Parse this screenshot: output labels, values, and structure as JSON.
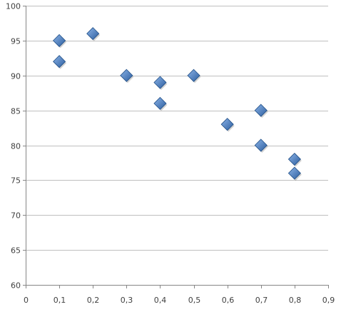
{
  "chart_data": {
    "type": "scatter",
    "title": "",
    "xlabel": "",
    "ylabel": "",
    "xlim": [
      0,
      0.9
    ],
    "ylim": [
      60,
      100
    ],
    "x_ticks": [
      0,
      0.1,
      0.2,
      0.3,
      0.4,
      0.5,
      0.6,
      0.7,
      0.8,
      0.9
    ],
    "x_tick_labels": [
      "0",
      "0,1",
      "0,2",
      "0,3",
      "0,4",
      "0,5",
      "0,6",
      "0,7",
      "0,8",
      "0,9"
    ],
    "y_ticks": [
      60,
      65,
      70,
      75,
      80,
      85,
      90,
      95,
      100
    ],
    "y_tick_labels": [
      "60",
      "65",
      "70",
      "75",
      "80",
      "85",
      "90",
      "95",
      "100"
    ],
    "grid": "horizontal",
    "legend": "none",
    "marker": "diamond",
    "colors": {
      "marker_fill_light": "#8cb4e8",
      "marker_fill_dark": "#2c5d9e",
      "marker_stroke": "#1f4e86"
    },
    "series": [
      {
        "points": [
          [
            0.1,
            95
          ],
          [
            0.1,
            92
          ],
          [
            0.2,
            96
          ],
          [
            0.3,
            90
          ],
          [
            0.4,
            89
          ],
          [
            0.4,
            86
          ],
          [
            0.5,
            90
          ],
          [
            0.6,
            83
          ],
          [
            0.7,
            85
          ],
          [
            0.7,
            80
          ],
          [
            0.8,
            78
          ],
          [
            0.8,
            76
          ]
        ]
      }
    ]
  }
}
